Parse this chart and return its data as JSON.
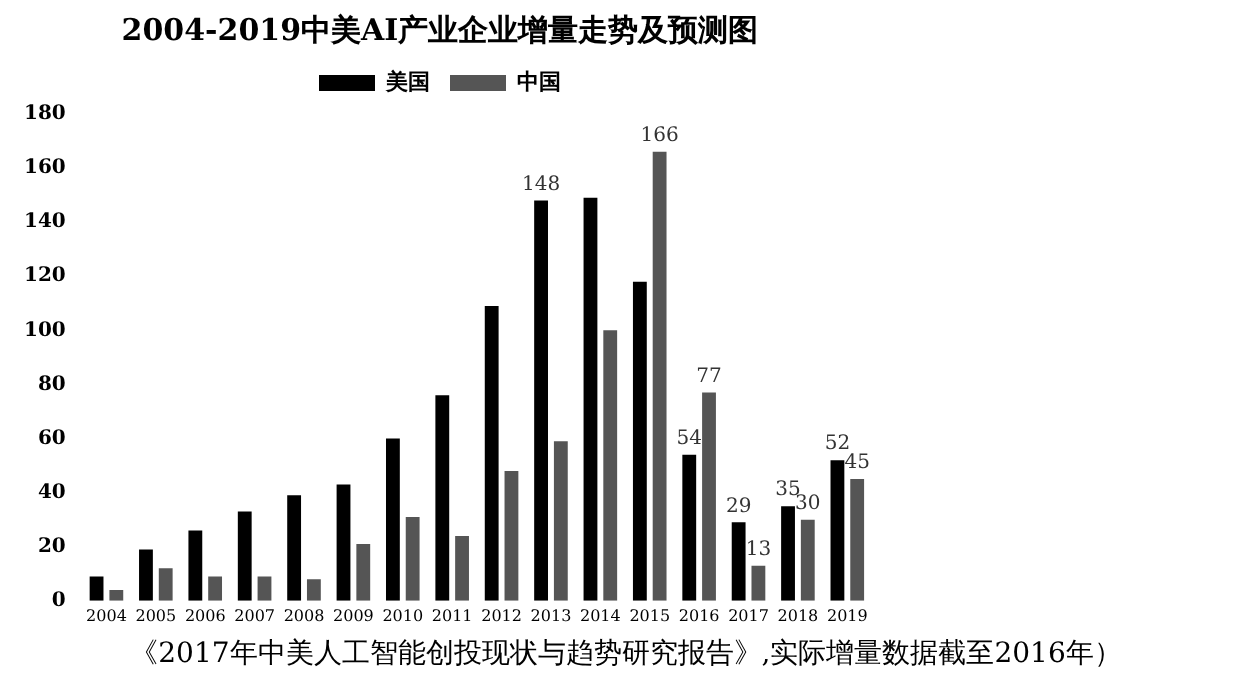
{
  "chart_data": {
    "type": "bar",
    "title": "2004-2019中美AI产业企业增量走势及预测图",
    "categories": [
      "2004",
      "2005",
      "2006",
      "2007",
      "2008",
      "2009",
      "2010",
      "2011",
      "2012",
      "2013",
      "2014",
      "2015",
      "2016",
      "2017",
      "2018",
      "2019"
    ],
    "series": [
      {
        "name": "美国",
        "color": "#000000",
        "values": [
          9,
          19,
          26,
          33,
          39,
          43,
          60,
          76,
          109,
          148,
          149,
          118,
          54,
          29,
          35,
          52
        ],
        "value_labels": [
          null,
          null,
          null,
          null,
          null,
          null,
          null,
          null,
          null,
          "148",
          null,
          null,
          "54",
          "29",
          "35",
          "52"
        ]
      },
      {
        "name": "中国",
        "color": "#555555",
        "values": [
          4,
          12,
          9,
          9,
          8,
          21,
          31,
          24,
          48,
          59,
          100,
          166,
          77,
          13,
          30,
          45
        ],
        "value_labels": [
          null,
          null,
          null,
          null,
          null,
          null,
          null,
          null,
          null,
          null,
          null,
          "166",
          "77",
          "13",
          "30",
          "45"
        ]
      }
    ],
    "ylim": [
      0,
      180
    ],
    "yticks": [
      0,
      20,
      40,
      60,
      80,
      100,
      120,
      140,
      160,
      180
    ],
    "grid": false,
    "legend": "top",
    "annotations": [
      "《2017年中美人工智能创投现状与趋势研究报告》,实际增量数据截至2016年）"
    ]
  }
}
